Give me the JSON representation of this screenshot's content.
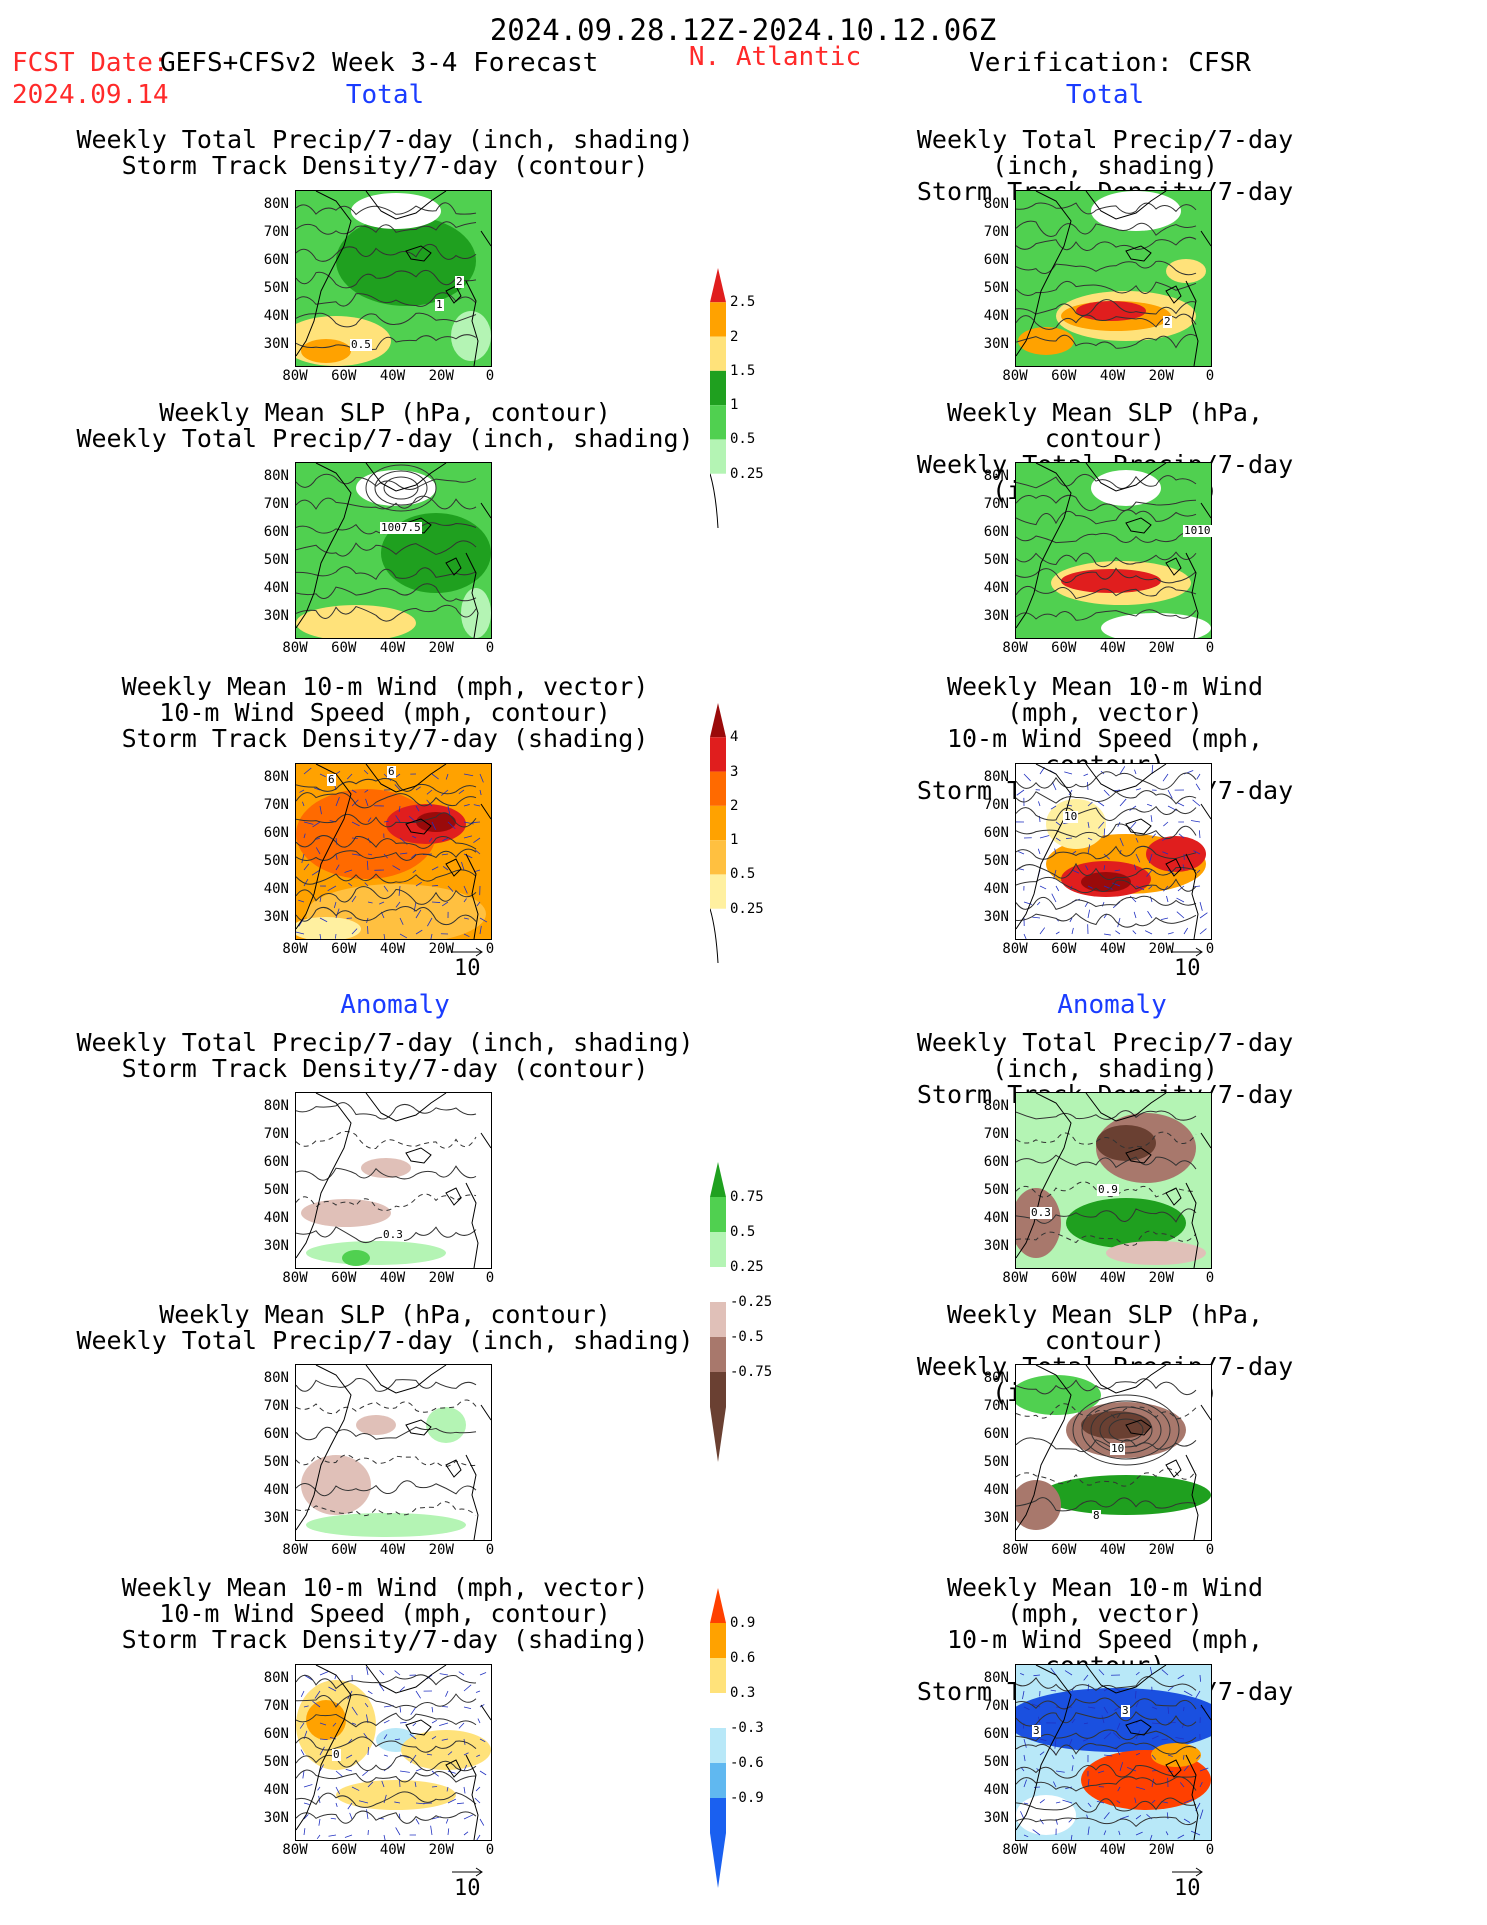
{
  "header": {
    "date_range": "2024.09.28.12Z-2024.10.12.06Z",
    "fcst_label": "FCST Date:",
    "model_label": "GEFS+CFSv2 Week 3-4 Forecast",
    "fcst_date": "2024.09.14",
    "region": "N. Atlantic",
    "verification": "Verification: CFSR"
  },
  "sections": {
    "total": "Total",
    "anomaly": "Anomaly"
  },
  "panel_titles": {
    "precip_storm": [
      "Weekly Total Precip/7-day (inch, shading)",
      "Storm Track Density/7-day (contour)"
    ],
    "slp_precip": [
      "Weekly Mean SLP (hPa, contour)",
      "Weekly Total Precip/7-day (inch, shading)"
    ],
    "wind_storm": [
      "Weekly Mean 10-m Wind (mph, vector)",
      "10-m Wind Speed (mph, contour)",
      "Storm Track Density/7-day (shading)"
    ]
  },
  "axes": {
    "lat_labels": [
      "80N",
      "70N",
      "60N",
      "50N",
      "40N",
      "30N"
    ],
    "lon_labels": [
      "80W",
      "60W",
      "40W",
      "20W",
      "0"
    ]
  },
  "vector_reference": "10",
  "contour_labels": {
    "fcst_total_precip": [
      "2",
      "1",
      "0.5"
    ],
    "fcst_total_slp": [
      "1007.5"
    ],
    "fcst_total_wind": [
      "6",
      "6"
    ],
    "ver_total_precip": [
      "2"
    ],
    "ver_total_slp": [
      "1010"
    ],
    "ver_total_wind": [
      "10"
    ],
    "fcst_anom_precip": [
      "0.3"
    ],
    "ver_anom_precip": [
      "0.9",
      "0.3"
    ],
    "ver_anom_slp": [
      "10",
      "8"
    ],
    "fcst_anom_wind": [
      "0"
    ],
    "ver_anom_wind": [
      "3",
      "3"
    ]
  },
  "colorbars": {
    "precip_total": {
      "labels": [
        "2.5",
        "2",
        "1.5",
        "1",
        "0.5",
        "0.25"
      ],
      "colors": [
        "#e01e1e",
        "#ffa200",
        "#ffe27a",
        "#1fa01f",
        "#50d050",
        "#b4f4b4"
      ]
    },
    "storm_total": {
      "labels": [
        "4",
        "3",
        "2",
        "1",
        "0.5",
        "0.25"
      ],
      "colors": [
        "#9a0a0a",
        "#e01e1e",
        "#ff6a00",
        "#ffa200",
        "#ffc040",
        "#fff0a0"
      ]
    },
    "precip_anom": {
      "labels": [
        "0.75",
        "0.5",
        "0.25",
        "-0.25",
        "-0.5",
        "-0.75"
      ],
      "colors": [
        "#1fa01f",
        "#50d050",
        "#b4f4b4",
        "#ffffff",
        "#e0c0b8",
        "#a8786c",
        "#6a4032"
      ]
    },
    "storm_anom": {
      "labels": [
        "0.9",
        "0.6",
        "0.3",
        "-0.3",
        "-0.6",
        "-0.9"
      ],
      "colors": [
        "#ff4000",
        "#ffa200",
        "#ffe27a",
        "#ffffff",
        "#b8e8f8",
        "#60b8f0",
        "#1a60f0"
      ]
    }
  },
  "map_colors": {
    "green_dark": "#1fa01f",
    "green_mid": "#50d050",
    "green_light": "#b4f4b4",
    "yellow": "#ffe27a",
    "orange": "#ffa200",
    "red": "#e01e1e",
    "dark_red": "#9a0a0a",
    "brown_light": "#e0c0b8",
    "brown_mid": "#a8786c",
    "brown_dark": "#6a4032",
    "blue_dark": "#1a50e0",
    "blue_light": "#b8e8f8"
  }
}
